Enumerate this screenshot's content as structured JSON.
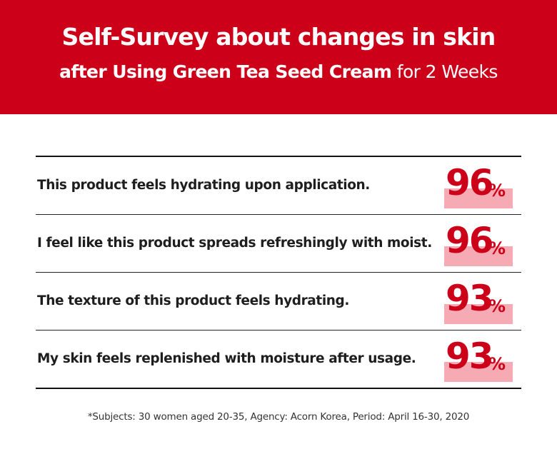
{
  "header": {
    "title_line1": "Self-Survey about changes in skin",
    "title_line2_bold": "after Using Green Tea Seed Cream",
    "title_line2_light": "for 2 Weeks"
  },
  "chart_data": {
    "type": "table",
    "unit": "%",
    "rows": [
      {
        "statement": "This product feels hydrating upon application.",
        "value": 96
      },
      {
        "statement": "I feel like this product spreads refreshingly with moist.",
        "value": 96
      },
      {
        "statement": "The texture of this product feels hydrating.",
        "value": 93
      },
      {
        "statement": "My skin feels replenished with moisture after usage.",
        "value": 93
      }
    ]
  },
  "footnote": "*Subjects: 30 women aged 20-35, Agency: Acorn Korea, Period: April 16-30, 2020",
  "colors": {
    "brand_red": "#cc0018",
    "highlight_pink": "#f5aab4"
  }
}
